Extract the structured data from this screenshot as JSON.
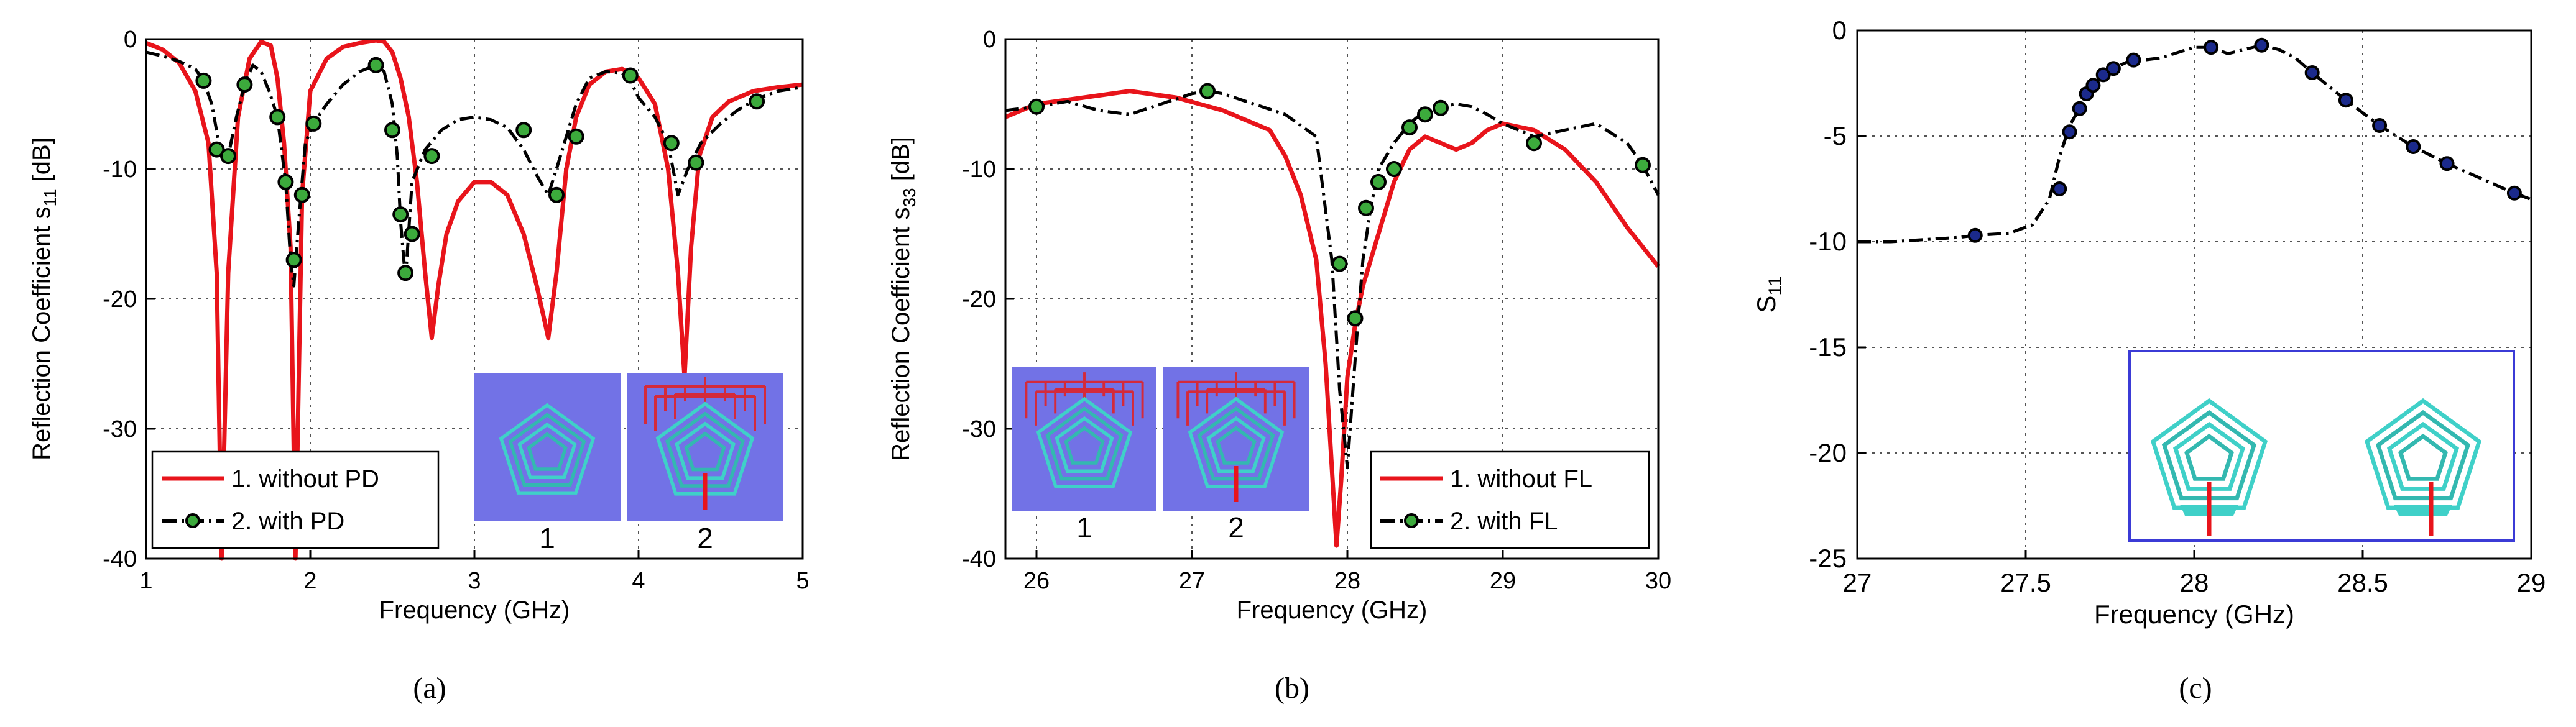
{
  "chart_data": [
    {
      "id": "a",
      "type": "line",
      "caption": "(a)",
      "xlabel": "Frequency (GHz)",
      "ylabel_main": "Reflection Coefficient s",
      "ylabel_sub": "11",
      "ylabel_unit": " [dB]",
      "xlim": [
        1,
        5
      ],
      "ylim": [
        -40,
        0
      ],
      "xticks": [
        1,
        2,
        3,
        4,
        5
      ],
      "yticks": [
        0,
        -10,
        -20,
        -30,
        -40
      ],
      "grid": true,
      "legend": "bottom-left",
      "inset_labels": [
        "1",
        "2"
      ],
      "series": [
        {
          "name": "1. without PD",
          "color": "#e8141b",
          "style": "solid",
          "marker": "none",
          "x": [
            1.0,
            1.1,
            1.2,
            1.3,
            1.38,
            1.43,
            1.46,
            1.5,
            1.56,
            1.63,
            1.7,
            1.76,
            1.8,
            1.84,
            1.88,
            1.91,
            1.95,
            2.0,
            2.1,
            2.2,
            2.3,
            2.4,
            2.45,
            2.5,
            2.55,
            2.6,
            2.65,
            2.7,
            2.74,
            2.78,
            2.83,
            2.9,
            3.0,
            3.1,
            3.2,
            3.3,
            3.38,
            3.45,
            3.5,
            3.56,
            3.62,
            3.7,
            3.8,
            3.9,
            4.0,
            4.1,
            4.18,
            4.24,
            4.28,
            4.32,
            4.37,
            4.45,
            4.55,
            4.7,
            4.85,
            5.0
          ],
          "y": [
            -0.3,
            -0.8,
            -1.8,
            -4.0,
            -8.0,
            -18.0,
            -40.0,
            -18.0,
            -6.0,
            -1.5,
            -0.2,
            -0.5,
            -3.0,
            -8.0,
            -16.0,
            -40.0,
            -12.0,
            -4.0,
            -1.5,
            -0.6,
            -0.3,
            -0.1,
            -0.2,
            -1.0,
            -3.0,
            -6.0,
            -11.0,
            -18.0,
            -23.0,
            -19.0,
            -15.0,
            -12.5,
            -11.0,
            -11.0,
            -12.0,
            -15.0,
            -19.0,
            -23.0,
            -18.0,
            -10.0,
            -6.0,
            -3.5,
            -2.5,
            -2.3,
            -3.0,
            -5.0,
            -10.0,
            -18.0,
            -26.0,
            -16.0,
            -9.0,
            -6.0,
            -4.8,
            -4.0,
            -3.7,
            -3.5
          ]
        },
        {
          "name": "2. with PD",
          "color": "#000000",
          "style": "dashdot",
          "marker": "circle",
          "marker_color": "#3caa3c",
          "x": [
            1.0,
            1.1,
            1.2,
            1.3,
            1.35,
            1.4,
            1.45,
            1.5,
            1.55,
            1.6,
            1.65,
            1.7,
            1.75,
            1.8,
            1.85,
            1.88,
            1.9,
            1.93,
            1.97,
            2.02,
            2.1,
            2.2,
            2.3,
            2.4,
            2.45,
            2.5,
            2.53,
            2.55,
            2.58,
            2.62,
            2.7,
            2.8,
            2.9,
            3.0,
            3.1,
            3.2,
            3.3,
            3.38,
            3.45,
            3.5,
            3.56,
            3.62,
            3.7,
            3.8,
            3.9,
            3.95,
            4.0,
            4.1,
            4.18,
            4.24,
            4.3,
            4.38,
            4.5,
            4.6,
            4.72,
            4.85,
            5.0
          ],
          "y": [
            -1.0,
            -1.3,
            -1.7,
            -2.3,
            -3.2,
            -5.0,
            -8.5,
            -9.0,
            -6.0,
            -3.5,
            -2.0,
            -2.5,
            -4.0,
            -6.0,
            -11.0,
            -17.0,
            -19.0,
            -14.0,
            -8.0,
            -6.5,
            -5.0,
            -3.5,
            -2.5,
            -2.0,
            -2.5,
            -5.0,
            -9.0,
            -14.0,
            -18.5,
            -11.0,
            -8.5,
            -7.0,
            -6.2,
            -6.0,
            -6.2,
            -6.8,
            -8.5,
            -10.5,
            -12.0,
            -10.0,
            -7.5,
            -5.0,
            -3.0,
            -2.5,
            -2.6,
            -3.2,
            -4.5,
            -6.0,
            -8.0,
            -12.0,
            -10.0,
            -8.0,
            -6.5,
            -5.5,
            -4.6,
            -4.0,
            -3.7
          ],
          "marker_x": [
            1.35,
            1.43,
            1.5,
            1.6,
            1.8,
            1.85,
            1.9,
            1.95,
            2.02,
            2.4,
            2.5,
            2.55,
            2.58,
            2.62,
            2.74,
            3.3,
            3.5,
            3.62,
            3.95,
            4.2,
            4.35,
            4.72
          ],
          "marker_y": [
            -3.2,
            -8.5,
            -9.0,
            -3.5,
            -6.0,
            -11.0,
            -17.0,
            -12.0,
            -6.5,
            -2.0,
            -7.0,
            -13.5,
            -18.0,
            -15.0,
            -9.0,
            -7.0,
            -12.0,
            -7.5,
            -2.8,
            -8.0,
            -9.5,
            -4.8
          ]
        }
      ]
    },
    {
      "id": "b",
      "type": "line",
      "caption": "(b)",
      "xlabel": "Frequency (GHz)",
      "ylabel_main": "Reflection Coefficient s",
      "ylabel_sub": "33",
      "ylabel_unit": " [dB]",
      "xlim": [
        25.8,
        30
      ],
      "ylim": [
        -40,
        0
      ],
      "xticks": [
        26,
        27,
        28,
        29,
        30
      ],
      "yticks": [
        0,
        -10,
        -20,
        -30,
        -40
      ],
      "grid": true,
      "legend": "bottom-right",
      "inset_labels": [
        "1",
        "2"
      ],
      "series": [
        {
          "name": "1. without FL",
          "color": "#e8141b",
          "style": "solid",
          "marker": "none",
          "x": [
            25.8,
            26.0,
            26.3,
            26.6,
            26.9,
            27.2,
            27.5,
            27.6,
            27.7,
            27.8,
            27.86,
            27.9,
            27.93,
            27.96,
            28.0,
            28.05,
            28.1,
            28.2,
            28.3,
            28.4,
            28.5,
            28.6,
            28.7,
            28.8,
            28.9,
            29.0,
            29.2,
            29.4,
            29.6,
            29.8,
            30.0
          ],
          "y": [
            -6.0,
            -5.0,
            -4.5,
            -4.0,
            -4.5,
            -5.5,
            -7.0,
            -9.0,
            -12.0,
            -17.0,
            -25.0,
            -33.0,
            -39.0,
            -34.0,
            -26.0,
            -22.0,
            -19.0,
            -15.0,
            -11.0,
            -8.5,
            -7.5,
            -8.0,
            -8.5,
            -8.0,
            -7.0,
            -6.5,
            -7.0,
            -8.5,
            -11.0,
            -14.5,
            -17.5
          ]
        },
        {
          "name": "2. with FL",
          "color": "#000000",
          "style": "dashdot",
          "marker": "circle",
          "marker_color": "#3caa3c",
          "x": [
            25.8,
            26.0,
            26.2,
            26.4,
            26.6,
            26.8,
            27.0,
            27.1,
            27.2,
            27.4,
            27.6,
            27.8,
            27.9,
            27.95,
            28.0,
            28.03,
            28.06,
            28.1,
            28.15,
            28.2,
            28.3,
            28.4,
            28.5,
            28.6,
            28.7,
            28.8,
            28.9,
            29.0,
            29.2,
            29.4,
            29.6,
            29.8,
            29.9,
            30.0
          ],
          "y": [
            -5.5,
            -5.2,
            -4.8,
            -5.5,
            -5.8,
            -5.0,
            -4.2,
            -4.0,
            -4.2,
            -5.0,
            -5.8,
            -7.5,
            -17.0,
            -27.0,
            -33.0,
            -28.0,
            -23.0,
            -17.0,
            -13.0,
            -10.0,
            -8.0,
            -6.5,
            -5.5,
            -5.2,
            -5.0,
            -5.2,
            -5.8,
            -6.5,
            -7.5,
            -7.0,
            -6.5,
            -8.0,
            -9.7,
            -12.0
          ],
          "marker_x": [
            26.0,
            27.1,
            27.95,
            28.05,
            28.12,
            28.2,
            28.3,
            28.4,
            28.5,
            28.6,
            29.2,
            29.9
          ],
          "marker_y": [
            -5.2,
            -4.0,
            -17.3,
            -21.5,
            -13.0,
            -11.0,
            -10.0,
            -6.8,
            -5.8,
            -5.3,
            -8.0,
            -9.7
          ]
        }
      ]
    },
    {
      "id": "c",
      "type": "line",
      "caption": "(c)",
      "xlabel": "Frequency (GHz)",
      "ylabel_main": "S",
      "ylabel_sub": "11",
      "ylabel_unit": "",
      "xlim": [
        27,
        29
      ],
      "ylim": [
        -25,
        0
      ],
      "xticks": [
        27,
        27.5,
        28,
        28.5,
        29
      ],
      "yticks": [
        0,
        -5,
        -10,
        -15,
        -20,
        -25
      ],
      "grid": true,
      "legend": "none",
      "series": [
        {
          "name": "S11",
          "color": "#000000",
          "style": "dashdot",
          "marker": "circle",
          "marker_color": "#1b2a8c",
          "x": [
            27.0,
            27.1,
            27.2,
            27.3,
            27.35,
            27.45,
            27.52,
            27.57,
            27.6,
            27.63,
            27.66,
            27.68,
            27.7,
            27.73,
            27.76,
            27.8,
            27.9,
            28.0,
            28.05,
            28.1,
            28.15,
            28.2,
            28.25,
            28.3,
            28.35,
            28.45,
            28.55,
            28.65,
            28.75,
            28.85,
            28.95,
            29.0
          ],
          "y": [
            -10.0,
            -10.0,
            -9.9,
            -9.8,
            -9.7,
            -9.6,
            -9.2,
            -8.0,
            -6.0,
            -4.5,
            -3.7,
            -3.0,
            -2.6,
            -2.1,
            -1.8,
            -1.5,
            -1.3,
            -0.8,
            -0.8,
            -1.1,
            -0.9,
            -0.7,
            -0.9,
            -1.3,
            -2.0,
            -3.3,
            -4.5,
            -5.5,
            -6.3,
            -7.0,
            -7.7,
            -8.0
          ],
          "marker_x": [
            27.35,
            27.6,
            27.63,
            27.66,
            27.68,
            27.7,
            27.73,
            27.76,
            27.82,
            28.05,
            28.2,
            28.35,
            28.45,
            28.55,
            28.65,
            28.75,
            28.95
          ],
          "marker_y": [
            -9.7,
            -7.5,
            -4.8,
            -3.7,
            -3.0,
            -2.6,
            -2.1,
            -1.8,
            -1.4,
            -0.8,
            -0.7,
            -2.0,
            -3.3,
            -4.5,
            -5.5,
            -6.3,
            -7.7
          ]
        }
      ]
    }
  ]
}
